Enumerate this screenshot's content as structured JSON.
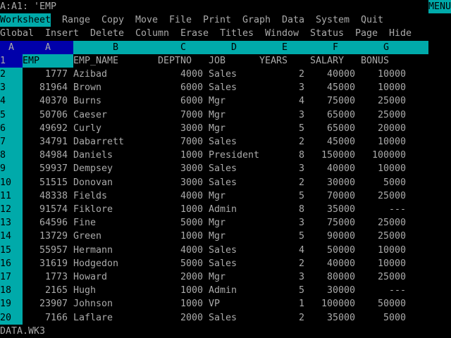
{
  "control_panel": {
    "cell_address": "A:A1: 'EMP",
    "mode_indicator": "MENU"
  },
  "menu": {
    "items": [
      "Worksheet",
      "Range",
      "Copy",
      "Move",
      "File",
      "Print",
      "Graph",
      "Data",
      "System",
      "Quit"
    ],
    "selected": "Worksheet",
    "submenu": [
      "Global",
      "Insert",
      "Delete",
      "Column",
      "Erase",
      "Titles",
      "Window",
      "Status",
      "Page",
      "Hide"
    ]
  },
  "sheet": {
    "sheet_letter": "A",
    "columns": [
      "A",
      "B",
      "C",
      "D",
      "E",
      "F",
      "G"
    ],
    "current_cell": "A1",
    "headers": [
      "EMP",
      "EMP_NAME",
      "DEPTNO",
      "JOB",
      "YEARS",
      "SALARY",
      "BONUS"
    ],
    "rows": [
      [
        "1777",
        "Azibad",
        "4000",
        "Sales",
        "2",
        "40000",
        "10000"
      ],
      [
        "81964",
        "Brown",
        "6000",
        "Sales",
        "3",
        "45000",
        "10000"
      ],
      [
        "40370",
        "Burns",
        "6000",
        "Mgr",
        "4",
        "75000",
        "25000"
      ],
      [
        "50706",
        "Caeser",
        "7000",
        "Mgr",
        "3",
        "65000",
        "25000"
      ],
      [
        "49692",
        "Curly",
        "3000",
        "Mgr",
        "5",
        "65000",
        "20000"
      ],
      [
        "34791",
        "Dabarrett",
        "7000",
        "Sales",
        "2",
        "45000",
        "10000"
      ],
      [
        "84984",
        "Daniels",
        "1000",
        "President",
        "8",
        "150000",
        "100000"
      ],
      [
        "59937",
        "Dempsey",
        "3000",
        "Sales",
        "3",
        "40000",
        "10000"
      ],
      [
        "51515",
        "Donovan",
        "3000",
        "Sales",
        "2",
        "30000",
        "5000"
      ],
      [
        "48338",
        "Fields",
        "4000",
        "Mgr",
        "5",
        "70000",
        "25000"
      ],
      [
        "91574",
        "Fiklore",
        "1000",
        "Admin",
        "8",
        "35000",
        "---"
      ],
      [
        "64596",
        "Fine",
        "5000",
        "Mgr",
        "3",
        "75000",
        "25000"
      ],
      [
        "13729",
        "Green",
        "1000",
        "Mgr",
        "5",
        "90000",
        "25000"
      ],
      [
        "55957",
        "Hermann",
        "4000",
        "Sales",
        "4",
        "50000",
        "10000"
      ],
      [
        "31619",
        "Hodgedon",
        "5000",
        "Sales",
        "2",
        "40000",
        "10000"
      ],
      [
        "1773",
        "Howard",
        "2000",
        "Mgr",
        "3",
        "80000",
        "25000"
      ],
      [
        "2165",
        "Hugh",
        "1000",
        "Admin",
        "5",
        "30000",
        "---"
      ],
      [
        "23907",
        "Johnson",
        "1000",
        "VP",
        "1",
        "100000",
        "50000"
      ],
      [
        "7166",
        "Laflare",
        "2000",
        "Sales",
        "2",
        "35000",
        "5000"
      ]
    ]
  },
  "status_bar": {
    "filename": "DATA.WK3"
  },
  "colors": {
    "cyan": "#00aaaa",
    "blue": "#0000aa",
    "text": "#aaaaaa",
    "background": "#000000"
  }
}
